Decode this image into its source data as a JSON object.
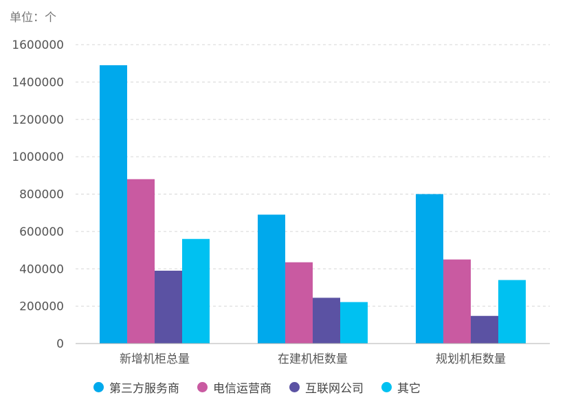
{
  "chart_data": {
    "type": "bar",
    "unit_label": "单位：个",
    "categories": [
      "新增机柜总量",
      "在建机柜数量",
      "规划机柜数量"
    ],
    "series": [
      {
        "name": "第三方服务商",
        "color": "#00a9ec",
        "values": [
          1490000,
          690000,
          800000
        ]
      },
      {
        "name": "电信运营商",
        "color": "#c95aa1",
        "values": [
          880000,
          435000,
          450000
        ]
      },
      {
        "name": "互联网公司",
        "color": "#5b52a3",
        "values": [
          390000,
          245000,
          148000
        ]
      },
      {
        "name": "其它",
        "color": "#00c1f1",
        "values": [
          560000,
          222000,
          340000
        ]
      }
    ],
    "ylim": [
      0,
      1600000
    ],
    "yticks": [
      "0",
      "200000",
      "400000",
      "600000",
      "800000",
      "1000000",
      "1200000",
      "1400000",
      "1600000"
    ],
    "grid": true,
    "legend_position": "bottom"
  }
}
